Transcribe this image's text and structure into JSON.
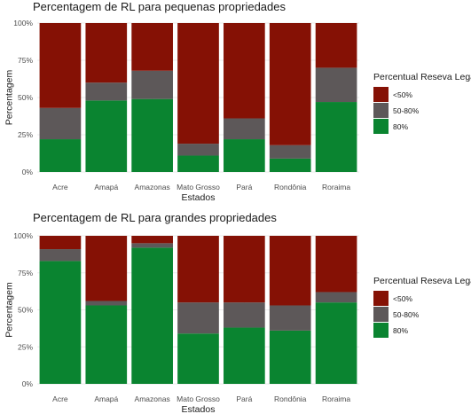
{
  "chart_data": [
    {
      "type": "bar",
      "stacked": true,
      "title": "Percentagem de RL para pequenas propriedades",
      "xlabel": "Estados",
      "ylabel": "Percentagem",
      "ylim": [
        0,
        100
      ],
      "yticks": [
        "0%",
        "25%",
        "50%",
        "75%",
        "100%"
      ],
      "categories": [
        "Acre",
        "Amapá",
        "Amazonas",
        "Mato Grosso",
        "Pará",
        "Rondônia",
        "Roraima"
      ],
      "legend": {
        "title": "Percentual Reseva Legal",
        "position": "right"
      },
      "series": [
        {
          "name": "80%",
          "color": "#0a8430",
          "values": [
            22,
            48,
            49,
            11,
            22,
            9,
            47
          ]
        },
        {
          "name": "50-80%",
          "color": "#5d5859",
          "values": [
            21,
            12,
            19,
            8,
            14,
            9,
            23
          ]
        },
        {
          "name": "<50%",
          "color": "#851105",
          "values": [
            57,
            40,
            32,
            81,
            64,
            82,
            30
          ]
        }
      ],
      "legend_order": [
        "<50%",
        "50-80%",
        "80%"
      ]
    },
    {
      "type": "bar",
      "stacked": true,
      "title": "Percentagem de RL para grandes propriedades",
      "xlabel": "Estados",
      "ylabel": "Percentagem",
      "ylim": [
        0,
        100
      ],
      "yticks": [
        "0%",
        "25%",
        "50%",
        "75%",
        "100%"
      ],
      "categories": [
        "Acre",
        "Amapá",
        "Amazonas",
        "Mato Grosso",
        "Pará",
        "Rondônia",
        "Roraima"
      ],
      "legend": {
        "title": "Percentual Reseva Legal",
        "position": "right"
      },
      "series": [
        {
          "name": "80%",
          "color": "#0a8430",
          "values": [
            83,
            53,
            92,
            34,
            38,
            36,
            55
          ]
        },
        {
          "name": "50-80%",
          "color": "#5d5859",
          "values": [
            8,
            3,
            3,
            21,
            17,
            17,
            7
          ]
        },
        {
          "name": "<50%",
          "color": "#851105",
          "values": [
            9,
            44,
            5,
            45,
            45,
            47,
            38
          ]
        }
      ],
      "legend_order": [
        "<50%",
        "50-80%",
        "80%"
      ]
    }
  ]
}
